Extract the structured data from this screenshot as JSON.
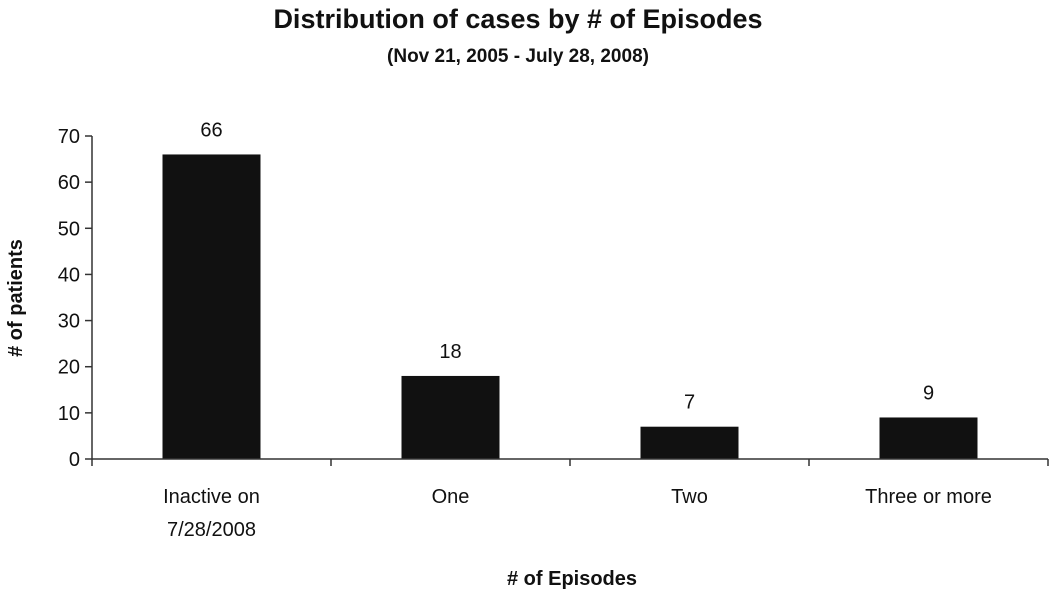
{
  "chart_data": {
    "type": "bar",
    "title": "Distribution of cases by # of Episodes",
    "subtitle": "(Nov 21, 2005 - July 28, 2008)",
    "xlabel": "# of Episodes",
    "ylabel": "# of patients",
    "categories": [
      [
        "Inactive on",
        "7/28/2008"
      ],
      [
        "One"
      ],
      [
        "Two"
      ],
      [
        "Three or more"
      ]
    ],
    "values": [
      66,
      18,
      7,
      9
    ],
    "ylim": [
      0,
      70
    ],
    "yticks": [
      0,
      10,
      20,
      30,
      40,
      50,
      60,
      70
    ],
    "bar_color": "#111111",
    "grid": false,
    "legend": "none"
  }
}
